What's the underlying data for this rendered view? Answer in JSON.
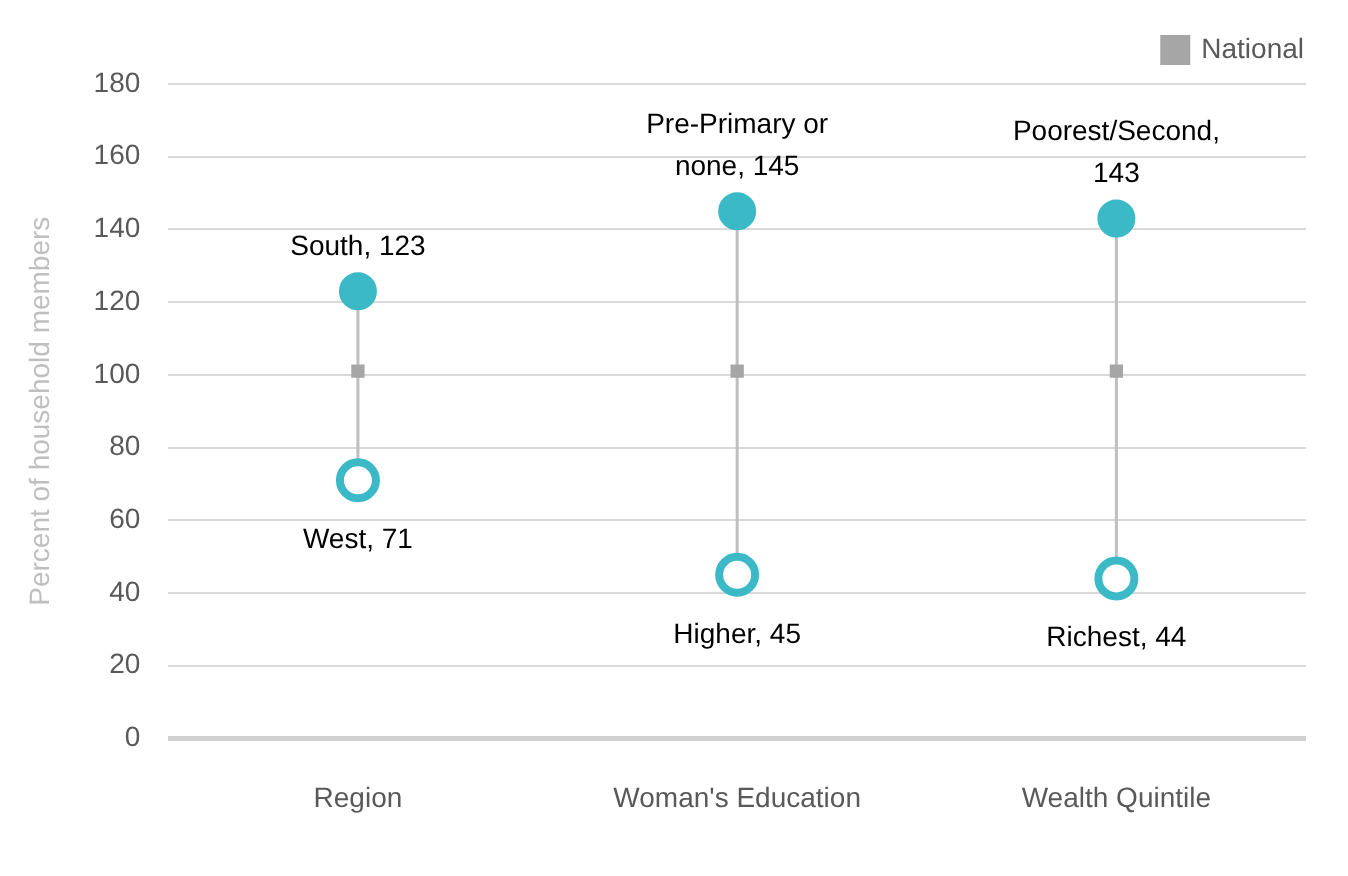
{
  "chart_data": {
    "type": "scatter",
    "ylabel": "Percent of household members",
    "categories": [
      "Region",
      "Woman's Education",
      "Wealth Quintile"
    ],
    "series": [
      {
        "color": "#3cb9c6",
        "marker": "circle",
        "values": [
          123,
          145,
          143
        ],
        "value_labels": [
          "South, 123",
          "Pre-Primary or none, 145",
          "Poorest/Second, 143"
        ]
      },
      {
        "color": "#3cb9c6",
        "marker": "circle",
        "values": [
          71,
          45,
          44
        ],
        "value_labels": [
          "West, 71",
          "Higher, 45",
          "Richest, 44"
        ]
      },
      {
        "name": "National",
        "color": "#a6a6a6",
        "marker": "square",
        "values": [
          101,
          101,
          101
        ]
      }
    ],
    "ylim": [
      0,
      180
    ],
    "yticks": [
      0,
      20,
      40,
      60,
      80,
      100,
      120,
      140,
      160,
      180
    ],
    "grid": "y",
    "legend": "top right"
  }
}
